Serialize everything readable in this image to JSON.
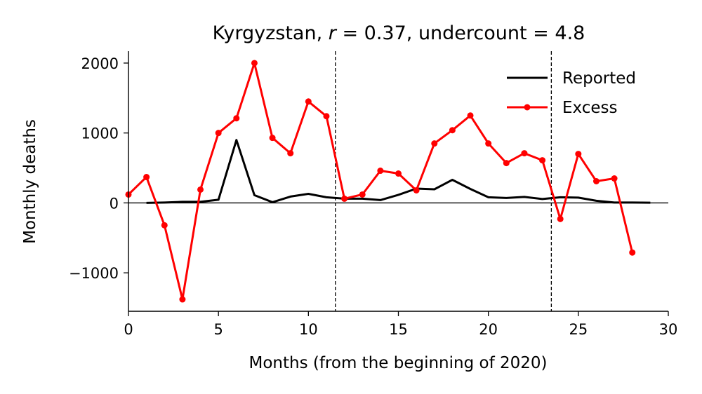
{
  "chart_data": {
    "type": "line",
    "title": {
      "prefix": "Kyrgyzstan, ",
      "r_symbol": "r",
      "r_text": " = 0.37, undercount = 4.8"
    },
    "xlabel": "Months (from the beginning of 2020)",
    "ylabel": "Monthly deaths",
    "xlim": [
      0,
      30
    ],
    "ylim": [
      -1550,
      2170
    ],
    "xticks": [
      0,
      5,
      10,
      15,
      20,
      25,
      30
    ],
    "xtick_labels": [
      "0",
      "5",
      "10",
      "15",
      "20",
      "25",
      "30"
    ],
    "yticks": [
      -1000,
      0,
      1000,
      2000
    ],
    "ytick_labels": [
      "−1000",
      "0",
      "1000",
      "2000"
    ],
    "hline": 0,
    "vlines": [
      11.5,
      23.5
    ],
    "grid": false,
    "legend_position": "top-right",
    "colors": {
      "reported": "#000000",
      "excess": "#ff0000"
    },
    "series": [
      {
        "name": "Reported",
        "x": [
          1,
          2,
          3,
          4,
          5,
          6,
          7,
          8,
          9,
          10,
          11,
          12,
          13,
          14,
          15,
          16,
          17,
          18,
          19,
          20,
          21,
          22,
          23,
          24,
          25,
          26,
          27,
          28,
          29
        ],
        "values": [
          0,
          5,
          15,
          15,
          45,
          900,
          110,
          10,
          90,
          130,
          80,
          60,
          60,
          40,
          115,
          205,
          195,
          330,
          200,
          80,
          70,
          85,
          55,
          80,
          75,
          30,
          5,
          5,
          3
        ]
      },
      {
        "name": "Excess",
        "x": [
          0,
          1,
          2,
          3,
          4,
          5,
          6,
          7,
          8,
          9,
          10,
          11,
          12,
          13,
          14,
          15,
          16,
          17,
          18,
          19,
          20,
          21,
          22,
          23,
          24,
          25,
          26,
          27,
          28
        ],
        "values": [
          120,
          370,
          -320,
          -1380,
          190,
          1000,
          1210,
          2000,
          930,
          710,
          1450,
          1240,
          60,
          120,
          460,
          420,
          180,
          850,
          1040,
          1250,
          850,
          570,
          710,
          610,
          -230,
          700,
          310,
          350,
          -710
        ]
      }
    ]
  }
}
